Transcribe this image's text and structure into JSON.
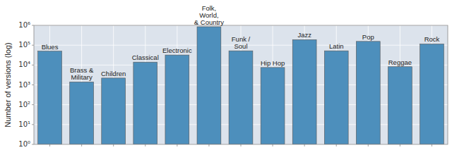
{
  "chart_data": {
    "type": "bar",
    "categories": [
      "Blues",
      "Brass &\nMilitary",
      "Children",
      "Classical",
      "Electronic",
      "Folk,\nWorld,\n& Country",
      "Funk /\nSoul",
      "Hip Hop",
      "Jazz",
      "Latin",
      "Pop",
      "Reggae",
      "Rock"
    ],
    "values": [
      50000,
      1400,
      2200,
      14000,
      32000,
      850000,
      52000,
      7500,
      190000,
      52000,
      155000,
      8200,
      115000
    ],
    "color": "#4d8fbc",
    "y_label": "Number of versions (log)",
    "log": "y",
    "ylim": [
      1,
      1000000
    ],
    "yticks": [
      {
        "value": 1,
        "label": "10⁰"
      },
      {
        "value": 10,
        "label": "10¹"
      },
      {
        "value": 100,
        "label": "10²"
      },
      {
        "value": 1000,
        "label": "10³"
      },
      {
        "value": 10000,
        "label": "10⁴"
      },
      {
        "value": 100000,
        "label": "10⁵"
      },
      {
        "value": 1000000,
        "label": "10⁶"
      }
    ],
    "grid": true
  }
}
